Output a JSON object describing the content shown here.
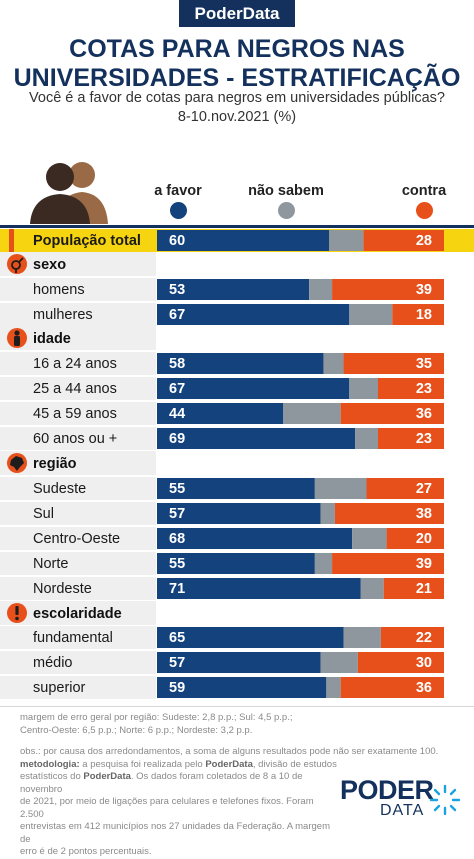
{
  "header": {
    "brand": "PoderData",
    "title_line1": "COTAS PARA NEGROS NAS",
    "title_line2": "UNIVERSIDADES - ESTRATIFICAÇÃO",
    "question": "Você é a favor de cotas para negros em universidades públicas?",
    "date": "8-10.nov.2021 (%)"
  },
  "legend": {
    "favor": "a favor",
    "nao_sabem": "não sabem",
    "contra": "contra"
  },
  "colors": {
    "favor": "#13427d",
    "nao_sabem": "#8f979e",
    "contra": "#e8501b",
    "highlight": "#f6d40f",
    "section_icon": "#e8501b",
    "row_bg": "#efefef"
  },
  "chart_data": {
    "type": "bar",
    "stacked": true,
    "orientation": "horizontal",
    "xlim": [
      0,
      100
    ],
    "series_keys": [
      "a favor",
      "não sabem",
      "contra"
    ],
    "rows": [
      {
        "kind": "total",
        "label": "População total",
        "favor": 60,
        "nao_sabem": 12,
        "contra": 28
      },
      {
        "kind": "section",
        "label": "sexo",
        "icon": "gender-icon"
      },
      {
        "kind": "row",
        "label": "homens",
        "favor": 53,
        "nao_sabem": 8,
        "contra": 39
      },
      {
        "kind": "row",
        "label": "mulheres",
        "favor": 67,
        "nao_sabem": 15,
        "contra": 18
      },
      {
        "kind": "section",
        "label": "idade",
        "icon": "person-icon"
      },
      {
        "kind": "row",
        "label": "16 a 24 anos",
        "favor": 58,
        "nao_sabem": 7,
        "contra": 35
      },
      {
        "kind": "row",
        "label": "25 a 44 anos",
        "favor": 67,
        "nao_sabem": 10,
        "contra": 23
      },
      {
        "kind": "row",
        "label": "45 a 59 anos",
        "favor": 44,
        "nao_sabem": 20,
        "contra": 36
      },
      {
        "kind": "row",
        "label": "60 anos ou +",
        "favor": 69,
        "nao_sabem": 8,
        "contra": 23
      },
      {
        "kind": "section",
        "label": "região",
        "icon": "brazil-map-icon"
      },
      {
        "kind": "row",
        "label": "Sudeste",
        "favor": 55,
        "nao_sabem": 18,
        "contra": 27
      },
      {
        "kind": "row",
        "label": "Sul",
        "favor": 57,
        "nao_sabem": 5,
        "contra": 38
      },
      {
        "kind": "row",
        "label": "Centro-Oeste",
        "favor": 68,
        "nao_sabem": 12,
        "contra": 20
      },
      {
        "kind": "row",
        "label": "Norte",
        "favor": 55,
        "nao_sabem": 6,
        "contra": 39
      },
      {
        "kind": "row",
        "label": "Nordeste",
        "favor": 71,
        "nao_sabem": 8,
        "contra": 21
      },
      {
        "kind": "section",
        "label": "escolaridade",
        "icon": "exclamation-icon"
      },
      {
        "kind": "row",
        "label": "fundamental",
        "favor": 65,
        "nao_sabem": 13,
        "contra": 22
      },
      {
        "kind": "row",
        "label": "médio",
        "favor": 57,
        "nao_sabem": 13,
        "contra": 30
      },
      {
        "kind": "row",
        "label": "superior",
        "favor": 59,
        "nao_sabem": 5,
        "contra": 36
      }
    ]
  },
  "footer": {
    "margin_line1": "margem de erro geral por região: Sudeste: 2,8 p.p.; Sul: 4,5 p.p.;",
    "margin_line2": "Centro-Oeste: 6,5 p.p.; Norte: 6 p.p.; Nordeste: 3,2 p.p.",
    "obs": "obs.: por causa dos arredondamentos, a soma de alguns resultados pode não ser exatamente 100.",
    "method_label": "metodologia:",
    "method_1": " a pesquisa foi realizada pelo ",
    "method_brand1": "PoderData",
    "method_2": ", divisão de estudos",
    "method_3": "estatísticos do ",
    "method_brand2": "PoderData",
    "method_4": ". Os dados foram coletados de 8 a 10 de novembro",
    "method_5": "de 2021, por meio de ligações para celulares e telefones fixos. Foram 2.500",
    "method_6": "entrevistas em 412 municípios nos 27 unidades da Federação. A margem de",
    "method_7": "erro é de 2 pontos percentuais.",
    "logo_top": "PODER",
    "logo_bottom": "DATA"
  }
}
